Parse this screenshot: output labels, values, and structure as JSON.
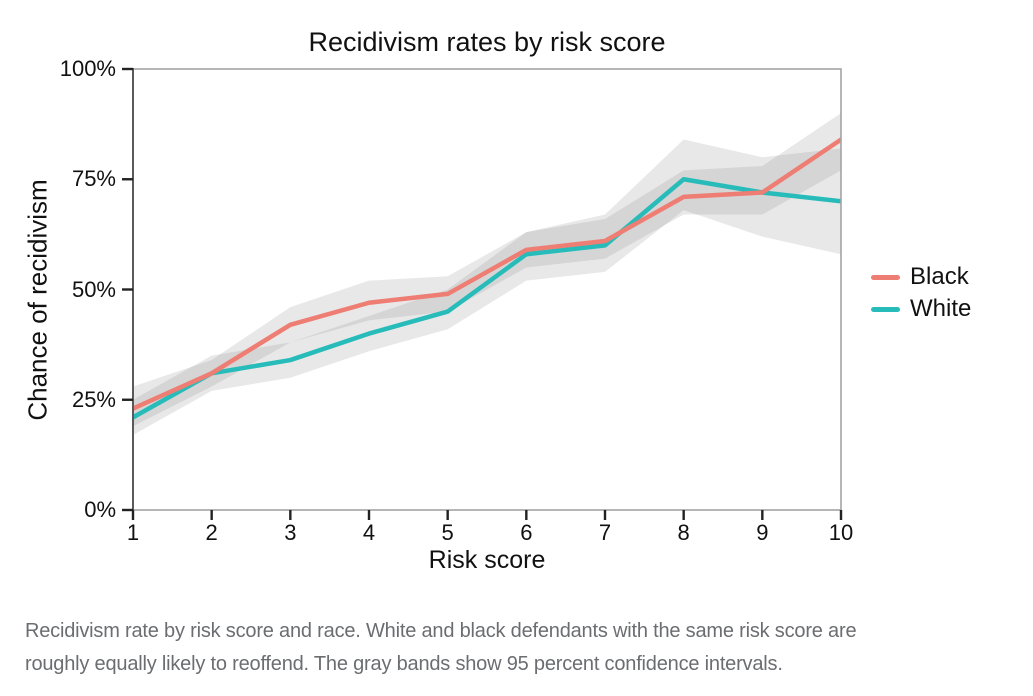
{
  "caption": {
    "line1": "Recidivism rate by risk score and race. White and black defendants with the same risk score are",
    "line2": "roughly equally likely to reoffend. The gray bands show 95 percent confidence intervals."
  },
  "chart_data": {
    "type": "line",
    "title": "Recidivism rates by risk score",
    "xlabel": "Risk score",
    "ylabel": "Chance of recidivism",
    "x": [
      1,
      2,
      3,
      4,
      5,
      6,
      7,
      8,
      9,
      10
    ],
    "xlim": [
      1,
      10
    ],
    "ylim": [
      0,
      100
    ],
    "grid": false,
    "legend_position": "right",
    "x_ticks": {
      "values": [
        1,
        2,
        3,
        4,
        5,
        6,
        7,
        8,
        9,
        10
      ],
      "labels": [
        "1",
        "2",
        "3",
        "4",
        "5",
        "6",
        "7",
        "8",
        "9",
        "10"
      ]
    },
    "y_ticks": {
      "values": [
        0,
        25,
        50,
        75,
        100
      ],
      "labels": [
        "0%",
        "25%",
        "50%",
        "75%",
        "100%"
      ]
    },
    "band_color": "rgba(130,130,130,0.18)",
    "ci_note": "95 percent confidence intervals",
    "series": [
      {
        "name": "Black",
        "color": "#ee7d73",
        "values": [
          23,
          31,
          42,
          47,
          49,
          59,
          61,
          71,
          72,
          84
        ],
        "ci_low": [
          19,
          28,
          38,
          43,
          45,
          55,
          57,
          67,
          67,
          77
        ],
        "ci_high": [
          28,
          34,
          46,
          52,
          53,
          63,
          66,
          77,
          78,
          90
        ]
      },
      {
        "name": "White",
        "color": "#27bcb9",
        "values": [
          21,
          31,
          34,
          40,
          45,
          58,
          60,
          75,
          72,
          70
        ],
        "ci_low": [
          17,
          27,
          30,
          36,
          41,
          52,
          54,
          68,
          62,
          58
        ],
        "ci_high": [
          25,
          35,
          38,
          44,
          50,
          63,
          67,
          84,
          80,
          82
        ]
      }
    ]
  }
}
